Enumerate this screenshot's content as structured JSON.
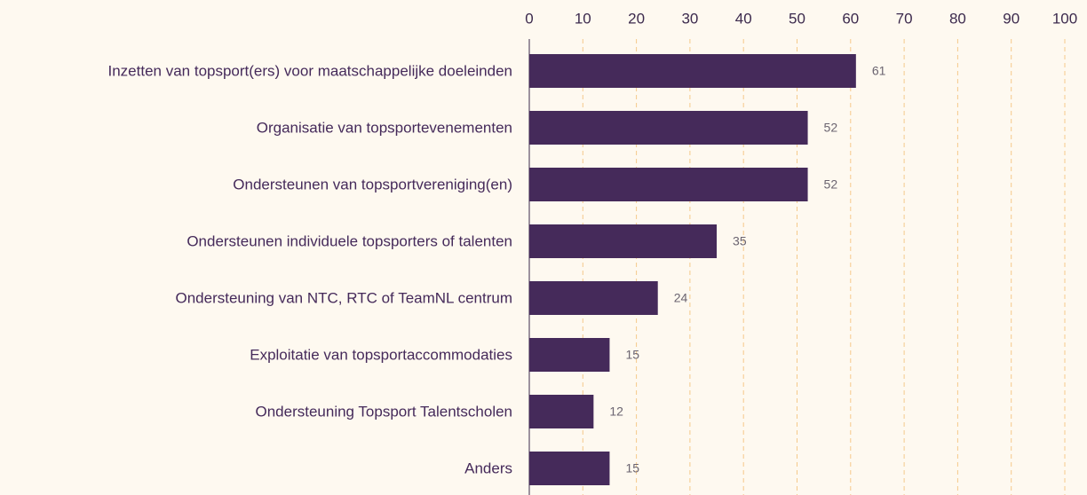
{
  "chart_data": {
    "type": "bar",
    "orientation": "horizontal",
    "categories": [
      "Inzetten van topsport(ers) voor maatschappelijke doeleinden",
      "Organisatie van topsportevenementen",
      "Ondersteunen van topsportvereniging(en)",
      "Ondersteunen individuele topsporters of talenten",
      "Ondersteuning van NTC, RTC of TeamNL centrum",
      "Exploitatie van topsportaccommodaties",
      "Ondersteuning Topsport Talentscholen",
      "Anders"
    ],
    "values": [
      61,
      52,
      52,
      35,
      24,
      15,
      12,
      15
    ],
    "color": "#452a5a",
    "xlim": [
      0,
      100
    ],
    "xticks": [
      0,
      10,
      20,
      30,
      40,
      50,
      60,
      70,
      80,
      90,
      100
    ],
    "grid": true
  }
}
